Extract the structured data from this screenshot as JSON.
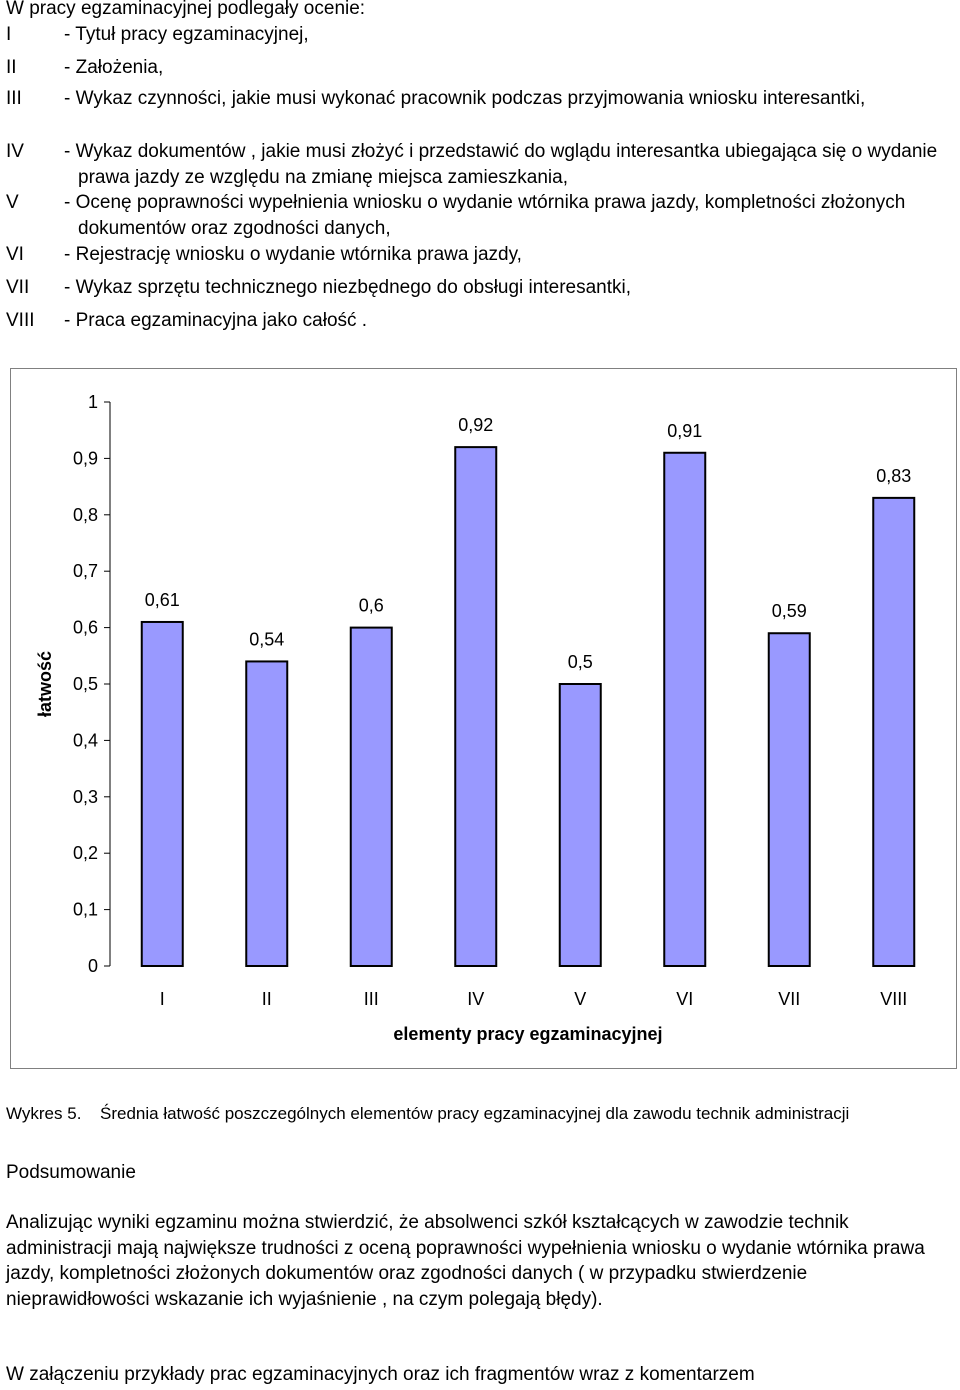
{
  "intro": "W pracy egzaminacyjnej podlegały ocenie:",
  "items": [
    {
      "roman": "I",
      "text": "- Tytuł pracy egzaminacyjnej,"
    },
    {
      "roman": "II",
      "text": "- Założenia,"
    },
    {
      "roman": "III",
      "text": "- Wykaz czynności, jakie musi wykonać pracownik podczas przyjmowania wniosku interesantki,"
    },
    {
      "roman": "IV",
      "text": "- Wykaz dokumentów , jakie musi złożyć i przedstawić do wglądu interesantka ubiegająca się o wydanie prawa jazdy ze względu na zmianę miejsca zamieszkania,"
    },
    {
      "roman": "V",
      "text": "- Ocenę poprawności wypełnienia wniosku o wydanie wtórnika prawa jazdy, kompletności złożonych dokumentów oraz zgodności danych,"
    },
    {
      "roman": "VI",
      "text": "- Rejestrację wniosku o wydanie wtórnika prawa jazdy,"
    },
    {
      "roman": "VII",
      "text": "- Wykaz sprzętu technicznego niezbędnego do obsługi interesantki,"
    },
    {
      "roman": "VIII",
      "text": "- Praca egzaminacyjna jako całość ."
    }
  ],
  "chart_data": {
    "type": "bar",
    "categories": [
      "I",
      "II",
      "III",
      "IV",
      "V",
      "VI",
      "VII",
      "VIII"
    ],
    "values": [
      0.61,
      0.54,
      0.6,
      0.92,
      0.5,
      0.91,
      0.59,
      0.83
    ],
    "data_labels": [
      "0,61",
      "0,54",
      "0,6",
      "0,92",
      "0,5",
      "0,91",
      "0,59",
      "0,83"
    ],
    "yticks": [
      0,
      0.1,
      0.2,
      0.3,
      0.4,
      0.5,
      0.6,
      0.7,
      0.8,
      0.9,
      1
    ],
    "ytick_labels": [
      "0",
      "0,1",
      "0,2",
      "0,3",
      "0,4",
      "0,5",
      "0,6",
      "0,7",
      "0,8",
      "0,9",
      "1"
    ],
    "ylim": [
      0,
      1
    ],
    "xlabel": "elementy pracy egzaminacyjnej",
    "ylabel": "łatwość",
    "grid": false,
    "bar_color": "#9999ff",
    "bar_edge_color": "#000000"
  },
  "caption": {
    "label": "Wykres 5.",
    "text": "Średnia łatwość poszczególnych elementów pracy egzaminacyjnej dla zawodu technik administracji"
  },
  "summary_heading": "Podsumowanie",
  "summary_text": "Analizując wyniki egzaminu można stwierdzić, że absolwenci szkół kształcących w zawodzie technik administracji  mają największe trudności z oceną poprawności wypełnienia wniosku o wydanie wtórnika prawa jazdy, kompletności złożonych dokumentów oraz zgodności danych ( w przypadku stwierdzenie nieprawidłowości wskazanie ich wyjaśnienie , na czym polegają błędy).",
  "final_text": "W załączeniu przykłady prac egzaminacyjnych oraz ich fragmentów wraz z komentarzem"
}
